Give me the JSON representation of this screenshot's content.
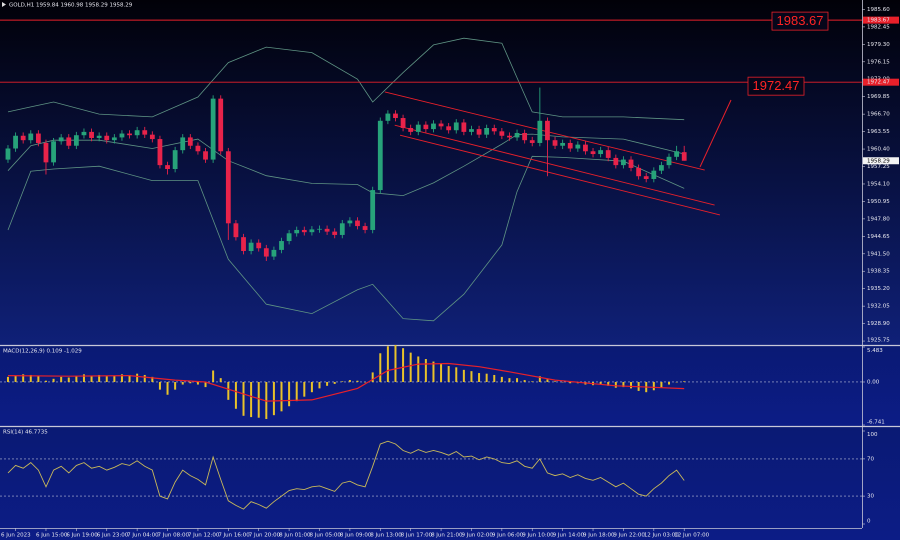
{
  "chart_data": [
    {
      "type": "candlestick",
      "title": "GOLD,H1 1959.84 1960.98 1958.29 1958.29",
      "up_color": "#27a37a",
      "down_color": "#e8234a",
      "candles": [
        [
          1958.5,
          1961.1,
          1957.9,
          1960.5
        ],
        [
          1960.5,
          1963.4,
          1959.9,
          1962.8
        ],
        [
          1962.8,
          1963.4,
          1961.4,
          1962.0
        ],
        [
          1962.0,
          1963.8,
          1961.4,
          1963.2
        ],
        [
          1963.2,
          1963.8,
          1960.9,
          1961.5
        ],
        [
          1961.5,
          1962.1,
          1955.8,
          1958.0
        ],
        [
          1958.0,
          1962.4,
          1957.4,
          1961.8
        ],
        [
          1961.8,
          1963.1,
          1961.2,
          1962.5
        ],
        [
          1962.5,
          1963.1,
          1960.4,
          1961.0
        ],
        [
          1961.0,
          1963.5,
          1960.4,
          1962.9
        ],
        [
          1962.9,
          1964.1,
          1962.3,
          1963.5
        ],
        [
          1963.5,
          1964.1,
          1961.8,
          1962.4
        ],
        [
          1962.4,
          1963.4,
          1961.8,
          1962.8
        ],
        [
          1962.8,
          1963.4,
          1961.4,
          1962.0
        ],
        [
          1962.0,
          1963.1,
          1961.4,
          1962.5
        ],
        [
          1962.5,
          1963.8,
          1961.9,
          1963.2
        ],
        [
          1963.2,
          1963.8,
          1962.3,
          1962.9
        ],
        [
          1962.9,
          1964.4,
          1962.3,
          1963.8
        ],
        [
          1963.8,
          1964.4,
          1962.4,
          1963.0
        ],
        [
          1963.0,
          1963.6,
          1961.6,
          1962.2
        ],
        [
          1962.2,
          1962.8,
          1956.9,
          1957.5
        ],
        [
          1957.5,
          1958.1,
          1955.8,
          1956.8
        ],
        [
          1956.8,
          1960.8,
          1956.2,
          1960.2
        ],
        [
          1960.2,
          1963.1,
          1959.6,
          1962.5
        ],
        [
          1962.5,
          1963.1,
          1960.4,
          1961.0
        ],
        [
          1961.0,
          1961.6,
          1959.4,
          1960.0
        ],
        [
          1960.0,
          1960.6,
          1957.9,
          1958.5
        ],
        [
          1958.5,
          1970.1,
          1957.9,
          1969.5
        ],
        [
          1969.5,
          1970.1,
          1959.4,
          1960.0
        ],
        [
          1960.0,
          1960.6,
          1944.0,
          1947.0
        ],
        [
          1947.0,
          1947.6,
          1943.9,
          1944.5
        ],
        [
          1944.5,
          1945.1,
          1941.4,
          1942.0
        ],
        [
          1942.0,
          1944.1,
          1941.4,
          1943.5
        ],
        [
          1943.5,
          1944.1,
          1941.9,
          1942.5
        ],
        [
          1942.5,
          1943.1,
          1940.2,
          1941.0
        ],
        [
          1941.0,
          1942.8,
          1940.4,
          1942.2
        ],
        [
          1942.2,
          1944.4,
          1941.6,
          1943.8
        ],
        [
          1943.8,
          1945.8,
          1943.2,
          1945.2
        ],
        [
          1945.2,
          1946.4,
          1944.6,
          1945.8
        ],
        [
          1945.8,
          1946.4,
          1944.8,
          1945.4
        ],
        [
          1945.4,
          1946.5,
          1944.8,
          1945.9
        ],
        [
          1945.9,
          1946.6,
          1945.3,
          1946.0
        ],
        [
          1946.0,
          1946.6,
          1944.9,
          1945.5
        ],
        [
          1945.5,
          1946.1,
          1944.3,
          1944.9
        ],
        [
          1944.9,
          1947.6,
          1944.3,
          1947.0
        ],
        [
          1947.0,
          1948.1,
          1946.4,
          1947.5
        ],
        [
          1947.5,
          1948.1,
          1945.9,
          1946.5
        ],
        [
          1946.5,
          1947.1,
          1945.2,
          1945.8
        ],
        [
          1945.8,
          1953.6,
          1945.2,
          1953.0
        ],
        [
          1953.0,
          1966.1,
          1952.4,
          1965.5
        ],
        [
          1965.5,
          1967.4,
          1964.9,
          1966.8
        ],
        [
          1966.8,
          1967.4,
          1965.4,
          1966.0
        ],
        [
          1966.0,
          1966.6,
          1963.6,
          1964.2
        ],
        [
          1964.2,
          1964.8,
          1962.9,
          1963.5
        ],
        [
          1963.5,
          1965.4,
          1962.9,
          1964.8
        ],
        [
          1964.8,
          1965.4,
          1963.4,
          1964.0
        ],
        [
          1964.0,
          1965.6,
          1963.4,
          1965.0
        ],
        [
          1965.0,
          1965.6,
          1963.9,
          1964.5
        ],
        [
          1964.5,
          1965.1,
          1963.2,
          1963.8
        ],
        [
          1963.8,
          1965.8,
          1963.2,
          1965.2
        ],
        [
          1965.2,
          1965.8,
          1962.9,
          1963.5
        ],
        [
          1963.5,
          1964.6,
          1962.9,
          1964.0
        ],
        [
          1964.0,
          1964.6,
          1962.4,
          1963.0
        ],
        [
          1963.0,
          1964.8,
          1962.4,
          1964.2
        ],
        [
          1964.2,
          1964.8,
          1963.0,
          1963.6
        ],
        [
          1963.6,
          1964.2,
          1962.2,
          1962.8
        ],
        [
          1962.8,
          1963.4,
          1961.9,
          1962.5
        ],
        [
          1962.5,
          1963.9,
          1961.9,
          1963.3
        ],
        [
          1963.3,
          1963.9,
          1961.4,
          1962.0
        ],
        [
          1962.0,
          1962.6,
          1960.9,
          1961.5
        ],
        [
          1961.5,
          1971.5,
          1960.9,
          1965.5
        ],
        [
          1965.5,
          1966.1,
          1955.5,
          1962.0
        ],
        [
          1962.0,
          1962.6,
          1960.4,
          1961.0
        ],
        [
          1961.0,
          1962.1,
          1960.4,
          1961.5
        ],
        [
          1961.5,
          1962.1,
          1959.9,
          1960.5
        ],
        [
          1960.5,
          1961.8,
          1959.9,
          1961.2
        ],
        [
          1961.2,
          1961.8,
          1959.4,
          1960.0
        ],
        [
          1960.0,
          1960.6,
          1958.9,
          1959.5
        ],
        [
          1959.5,
          1960.8,
          1958.9,
          1960.2
        ],
        [
          1960.2,
          1960.8,
          1958.2,
          1958.8
        ],
        [
          1958.8,
          1959.4,
          1956.9,
          1957.5
        ],
        [
          1957.5,
          1959.1,
          1956.9,
          1958.5
        ],
        [
          1958.5,
          1959.1,
          1956.4,
          1957.0
        ],
        [
          1957.0,
          1957.6,
          1954.9,
          1955.5
        ],
        [
          1955.5,
          1956.1,
          1954.4,
          1955.0
        ],
        [
          1955.0,
          1957.1,
          1954.4,
          1956.5
        ],
        [
          1956.5,
          1958.1,
          1955.9,
          1957.5
        ],
        [
          1957.5,
          1959.6,
          1956.9,
          1959.0
        ],
        [
          1959.0,
          1960.98,
          1958.4,
          1960.0
        ],
        [
          1959.84,
          1960.98,
          1958.29,
          1958.29
        ]
      ],
      "bands": {
        "color": "#5f9484",
        "x": [
          0,
          3,
          6,
          12,
          19,
          25,
          29,
          34,
          40,
          46,
          48,
          52,
          56,
          60,
          65,
          67,
          69,
          73,
          81,
          89
        ],
        "upper": [
          1967.1,
          1968.0,
          1968.9,
          1966.7,
          1966.2,
          1969.8,
          1976.0,
          1978.8,
          1977.8,
          1973.0,
          1968.9,
          1974.2,
          1979.2,
          1980.4,
          1979.5,
          1973.3,
          1967.1,
          1966.2,
          1966.2,
          1965.7
        ],
        "middle": [
          1956.5,
          1961.0,
          1962.0,
          1962.0,
          1960.5,
          1962.2,
          1958.3,
          1955.6,
          1954.2,
          1954.0,
          1952.5,
          1952.0,
          1954.3,
          1957.3,
          1961.3,
          1963.0,
          1963.1,
          1962.6,
          1962.2,
          1959.5
        ],
        "lower": [
          1945.8,
          1956.4,
          1956.8,
          1957.3,
          1954.7,
          1954.7,
          1940.5,
          1932.4,
          1930.7,
          1935.0,
          1936.0,
          1929.8,
          1929.4,
          1934.2,
          1943.1,
          1952.7,
          1959.1,
          1958.9,
          1958.2,
          1953.3
        ]
      },
      "levels": [
        1983.67,
        1972.47
      ],
      "level_color": "#e8202a",
      "trendlines": [
        {
          "x": [
            49.6,
            91.7
          ],
          "y": [
            1970.7,
            1956.6
          ]
        },
        {
          "x": [
            50.9,
            93.0
          ],
          "y": [
            1964.7,
            1950.3
          ]
        },
        {
          "x": [
            51.6,
            93.7
          ],
          "y": [
            1962.9,
            1948.5
          ]
        }
      ],
      "ylim": [
        1925.4,
        1987.3
      ],
      "yticks": [
        {
          "value": 1985.6,
          "label": "1985.60"
        },
        1982.45,
        {
          "value": 1979.3,
          "label": "1979.30"
        },
        1976.15,
        {
          "value": 1973.0,
          "label": "1973.00"
        },
        1969.85,
        {
          "value": 1966.7,
          "label": "1966.70"
        },
        1963.55,
        {
          "value": 1960.4,
          "label": "1960.40"
        },
        1957.25,
        {
          "value": 1954.1,
          "label": "1954.10"
        },
        1950.95,
        {
          "value": 1947.8,
          "label": "1947.80"
        },
        1944.65,
        {
          "value": 1941.5,
          "label": "1941.50"
        },
        1938.35,
        {
          "value": 1935.2,
          "label": "1935.20"
        },
        1932.05,
        {
          "value": 1928.9,
          "label": "1928.90"
        },
        1925.75
      ]
    },
    {
      "type": "macd",
      "title": "MACD(12,26,9) 0.109 -1.029",
      "hist_color": "#e8c22a",
      "histogram": [
        0.8,
        1.0,
        1.2,
        1.1,
        0.9,
        0.2,
        0.5,
        0.8,
        0.7,
        0.9,
        1.2,
        1.0,
        1.1,
        0.9,
        1.0,
        1.2,
        1.1,
        1.3,
        1.1,
        0.8,
        -1.2,
        -2.0,
        -1.2,
        -0.4,
        -0.2,
        -0.4,
        -0.8,
        1.8,
        0.6,
        -2.8,
        -4.2,
        -5.3,
        -5.5,
        -5.6,
        -5.8,
        -5.2,
        -4.6,
        -3.8,
        -3.0,
        -2.3,
        -1.6,
        -1.0,
        -0.6,
        -0.3,
        0.1,
        0.3,
        0.2,
        0.0,
        1.5,
        4.5,
        5.6,
        5.8,
        5.3,
        4.6,
        4.0,
        3.6,
        3.2,
        2.9,
        2.5,
        2.3,
        1.9,
        1.7,
        1.4,
        1.3,
        1.1,
        0.8,
        0.6,
        0.6,
        0.3,
        0.1,
        0.9,
        0.4,
        0.1,
        0.0,
        -0.2,
        -0.2,
        -0.4,
        -0.5,
        -0.4,
        -0.6,
        -0.9,
        -0.8,
        -1.0,
        -1.4,
        -1.6,
        -1.3,
        -0.9,
        -0.4,
        0.0,
        0.109
      ],
      "signal": {
        "color": "#e8202a",
        "x": [
          0,
          8,
          16,
          22,
          26,
          30,
          34,
          40,
          46,
          50,
          54,
          58,
          62,
          66,
          72,
          80,
          89
        ],
        "values": [
          1.0,
          0.9,
          1.0,
          0.3,
          0.0,
          -1.5,
          -3.0,
          -2.8,
          -1.0,
          1.8,
          2.8,
          2.9,
          2.4,
          1.6,
          0.3,
          -0.6,
          -1.029
        ]
      },
      "ylim": [
        -6.741,
        5.483
      ],
      "grid": "dashed",
      "yticks": [
        5.483,
        {
          "value": 0,
          "label": "0.00"
        },
        -6.741
      ]
    },
    {
      "type": "line",
      "title": "RSI(14) 46.7735",
      "color": "#c8b85a",
      "values": [
        55,
        63,
        60,
        66,
        58,
        40,
        58,
        62,
        55,
        63,
        66,
        60,
        62,
        58,
        61,
        65,
        63,
        68,
        62,
        58,
        30,
        27,
        45,
        58,
        52,
        48,
        42,
        72,
        48,
        25,
        20,
        16,
        24,
        21,
        17,
        24,
        30,
        36,
        38,
        37,
        40,
        41,
        38,
        35,
        44,
        46,
        42,
        40,
        62,
        86,
        89,
        86,
        79,
        76,
        80,
        77,
        79,
        77,
        74,
        78,
        72,
        73,
        69,
        72,
        70,
        66,
        65,
        68,
        62,
        60,
        70,
        55,
        52,
        54,
        50,
        53,
        49,
        47,
        50,
        45,
        40,
        44,
        38,
        32,
        30,
        38,
        44,
        52,
        58,
        46.7735
      ],
      "ylim": [
        0,
        100
      ],
      "grid": "dashed",
      "yticks": [
        100,
        70,
        30,
        0
      ],
      "xlim": [
        -1.05,
        112.4
      ],
      "xticks": [
        {
          "value": 1,
          "label": "6 Jun 2023"
        },
        {
          "value": 5,
          "label": "6 Jun 15:00"
        },
        {
          "value": 9,
          "label": "6 Jun 19:00"
        },
        {
          "value": 13,
          "label": "6 Jun 23:00"
        },
        {
          "value": 17,
          "label": "7 Jun 04:00"
        },
        {
          "value": 21,
          "label": "7 Jun 08:00"
        },
        {
          "value": 25,
          "label": "7 Jun 12:00"
        },
        {
          "value": 29,
          "label": "7 Jun 16:00"
        },
        {
          "value": 33,
          "label": "7 Jun 20:00"
        },
        {
          "value": 37,
          "label": "8 Jun 01:00"
        },
        {
          "value": 41,
          "label": "8 Jun 05:00"
        },
        {
          "value": 45,
          "label": "8 Jun 09:00"
        },
        {
          "value": 49,
          "label": "8 Jun 13:00"
        },
        {
          "value": 53,
          "label": "8 Jun 17:00"
        },
        {
          "value": 57,
          "label": "8 Jun 21:00"
        },
        {
          "value": 61,
          "label": "9 Jun 02:00"
        },
        {
          "value": 65,
          "label": "9 Jun 06:00"
        },
        {
          "value": 69,
          "label": "9 Jun 10:00"
        },
        {
          "value": 73,
          "label": "9 Jun 14:00"
        },
        {
          "value": 77,
          "label": "9 Jun 18:00"
        },
        {
          "value": 81,
          "label": "9 Jun 22:00"
        },
        {
          "value": 85,
          "label": "12 Jun 03:00"
        },
        {
          "value": 89,
          "label": "12 Jun 07:00"
        }
      ]
    }
  ]
}
